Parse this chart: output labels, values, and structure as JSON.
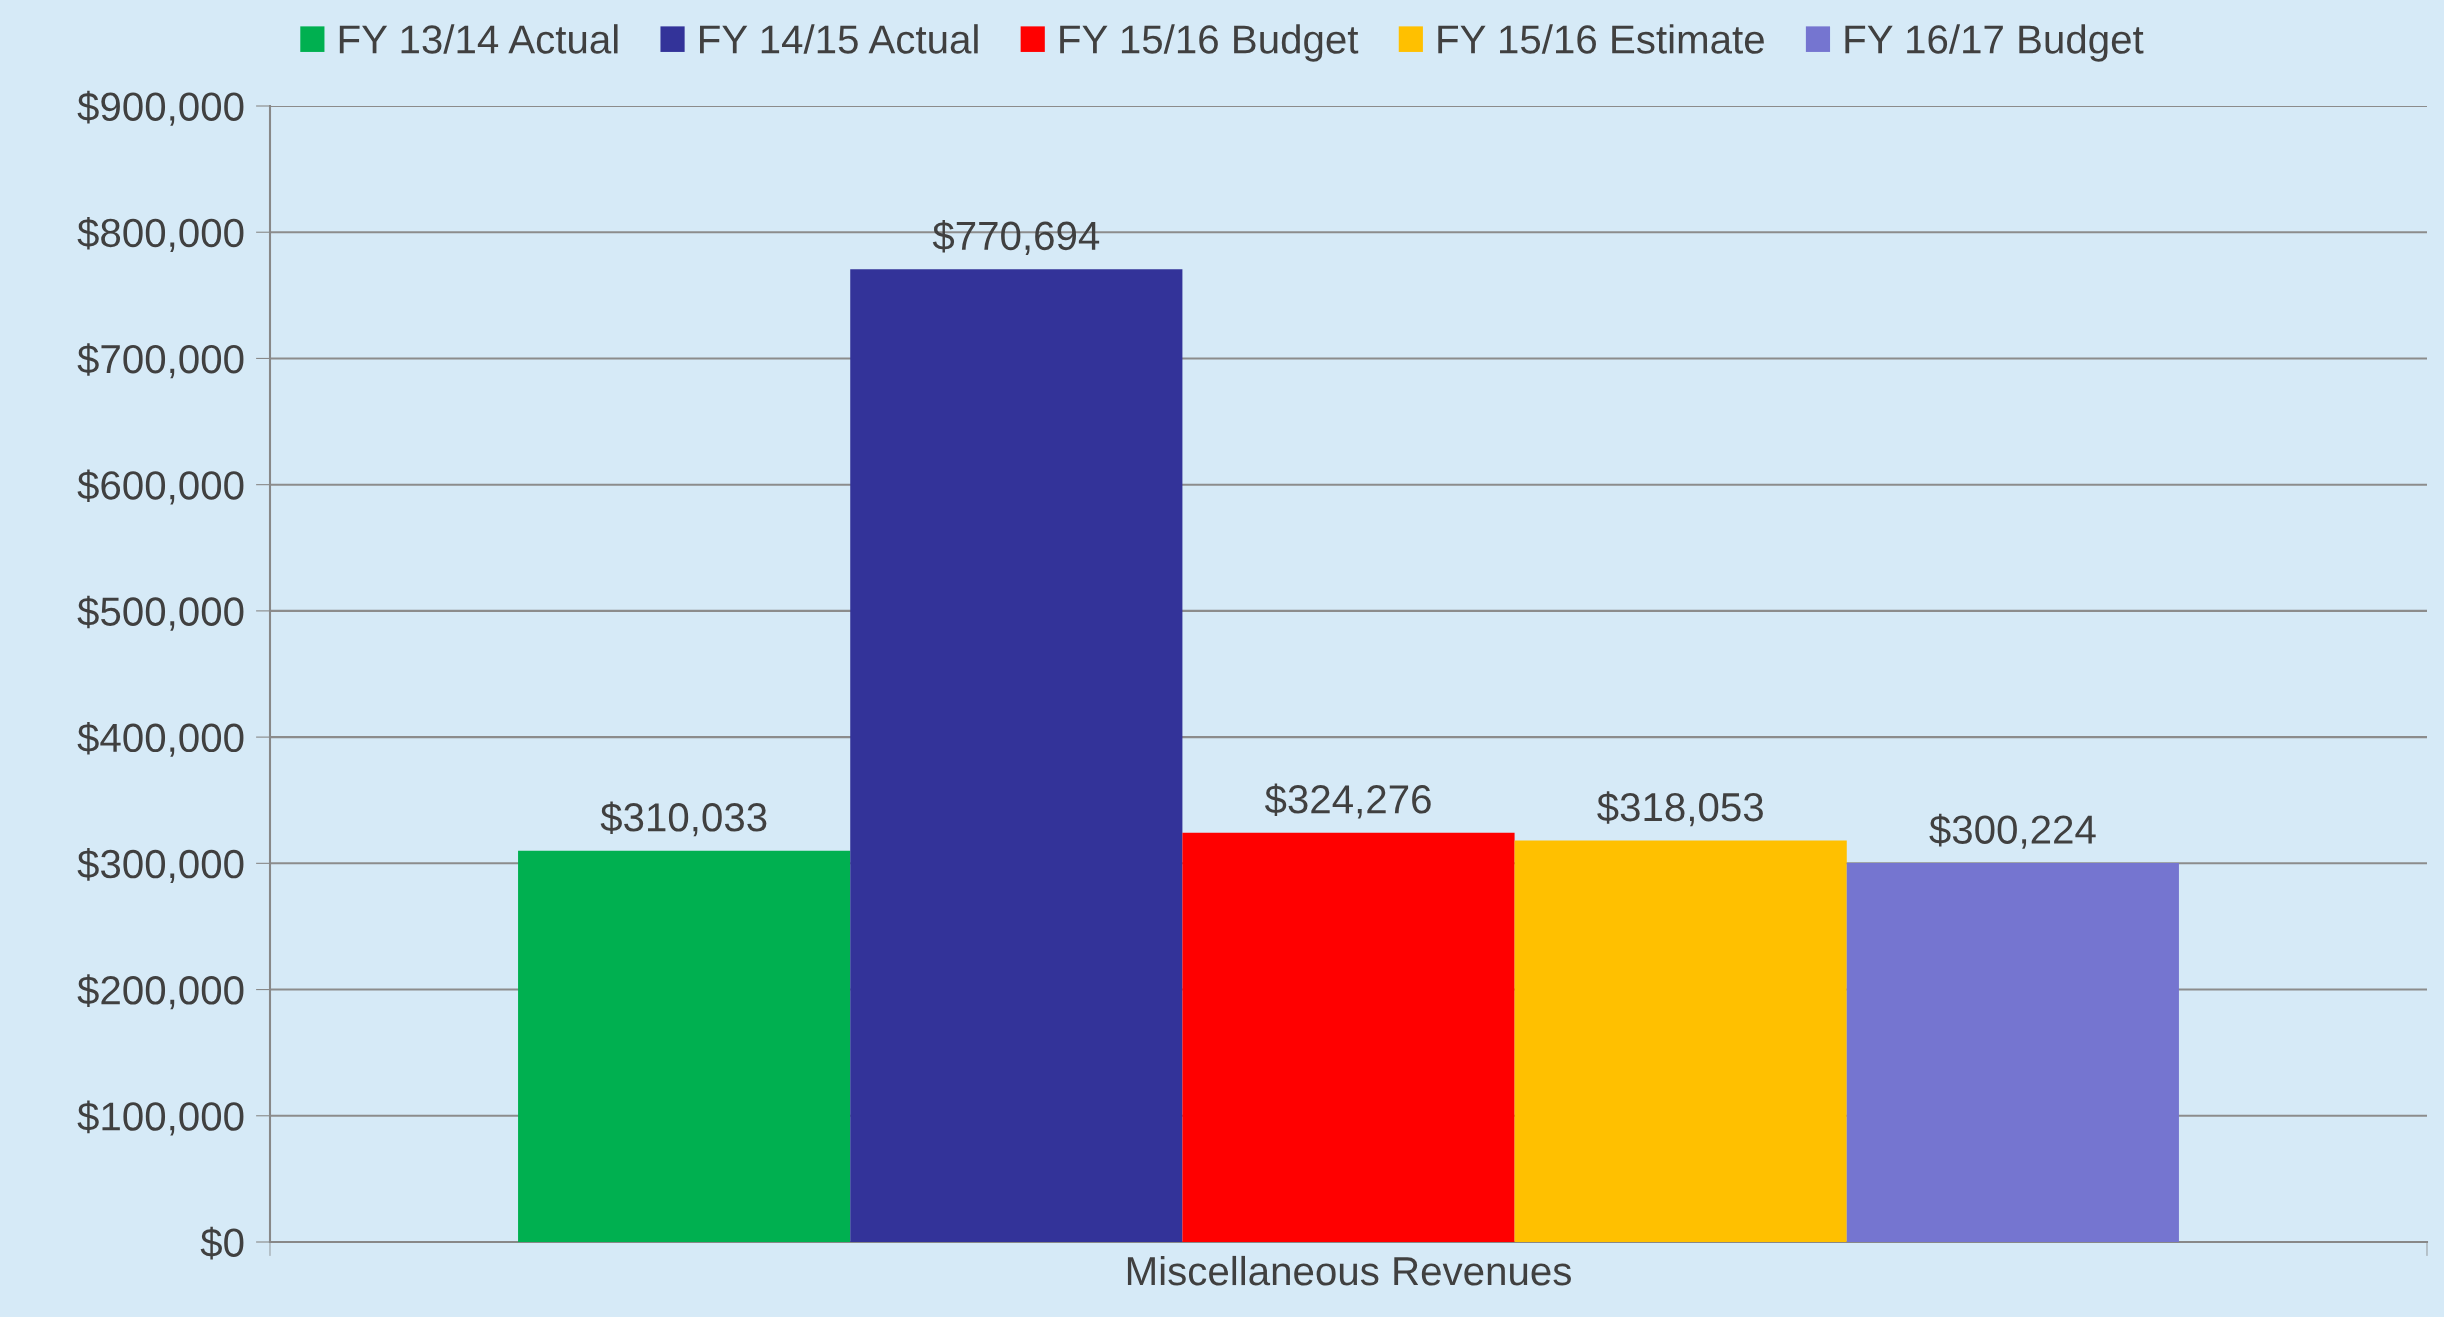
{
  "chart_data": {
    "type": "bar",
    "categories": [
      "Miscellaneous Revenues"
    ],
    "series": [
      {
        "name": "FY 13/14 Actual",
        "color": "#00b050",
        "values": [
          310033
        ],
        "value_labels": [
          "$310,033"
        ]
      },
      {
        "name": "FY 14/15 Actual",
        "color": "#333399",
        "values": [
          770694
        ],
        "value_labels": [
          "$770,694"
        ]
      },
      {
        "name": "FY 15/16 Budget",
        "color": "#ff0000",
        "values": [
          324276
        ],
        "value_labels": [
          "$324,276"
        ]
      },
      {
        "name": "FY 15/16 Estimate",
        "color": "#ffc000",
        "values": [
          318053
        ],
        "value_labels": [
          "$318,053"
        ]
      },
      {
        "name": "FY 16/17 Budget",
        "color": "#7575d0",
        "values": [
          300224
        ],
        "value_labels": [
          "$300,224"
        ]
      }
    ],
    "ylim": [
      0,
      900000
    ],
    "yticks": [
      {
        "value": 0,
        "label": "$0"
      },
      {
        "value": 100000,
        "label": "$100,000"
      },
      {
        "value": 200000,
        "label": "$200,000"
      },
      {
        "value": 300000,
        "label": "$300,000"
      },
      {
        "value": 400000,
        "label": "$400,000"
      },
      {
        "value": 500000,
        "label": "$500,000"
      },
      {
        "value": 600000,
        "label": "$600,000"
      },
      {
        "value": 700000,
        "label": "$700,000"
      },
      {
        "value": 800000,
        "label": "$800,000"
      },
      {
        "value": 900000,
        "label": "$900,000"
      }
    ],
    "grid": "y",
    "legend": "top"
  }
}
